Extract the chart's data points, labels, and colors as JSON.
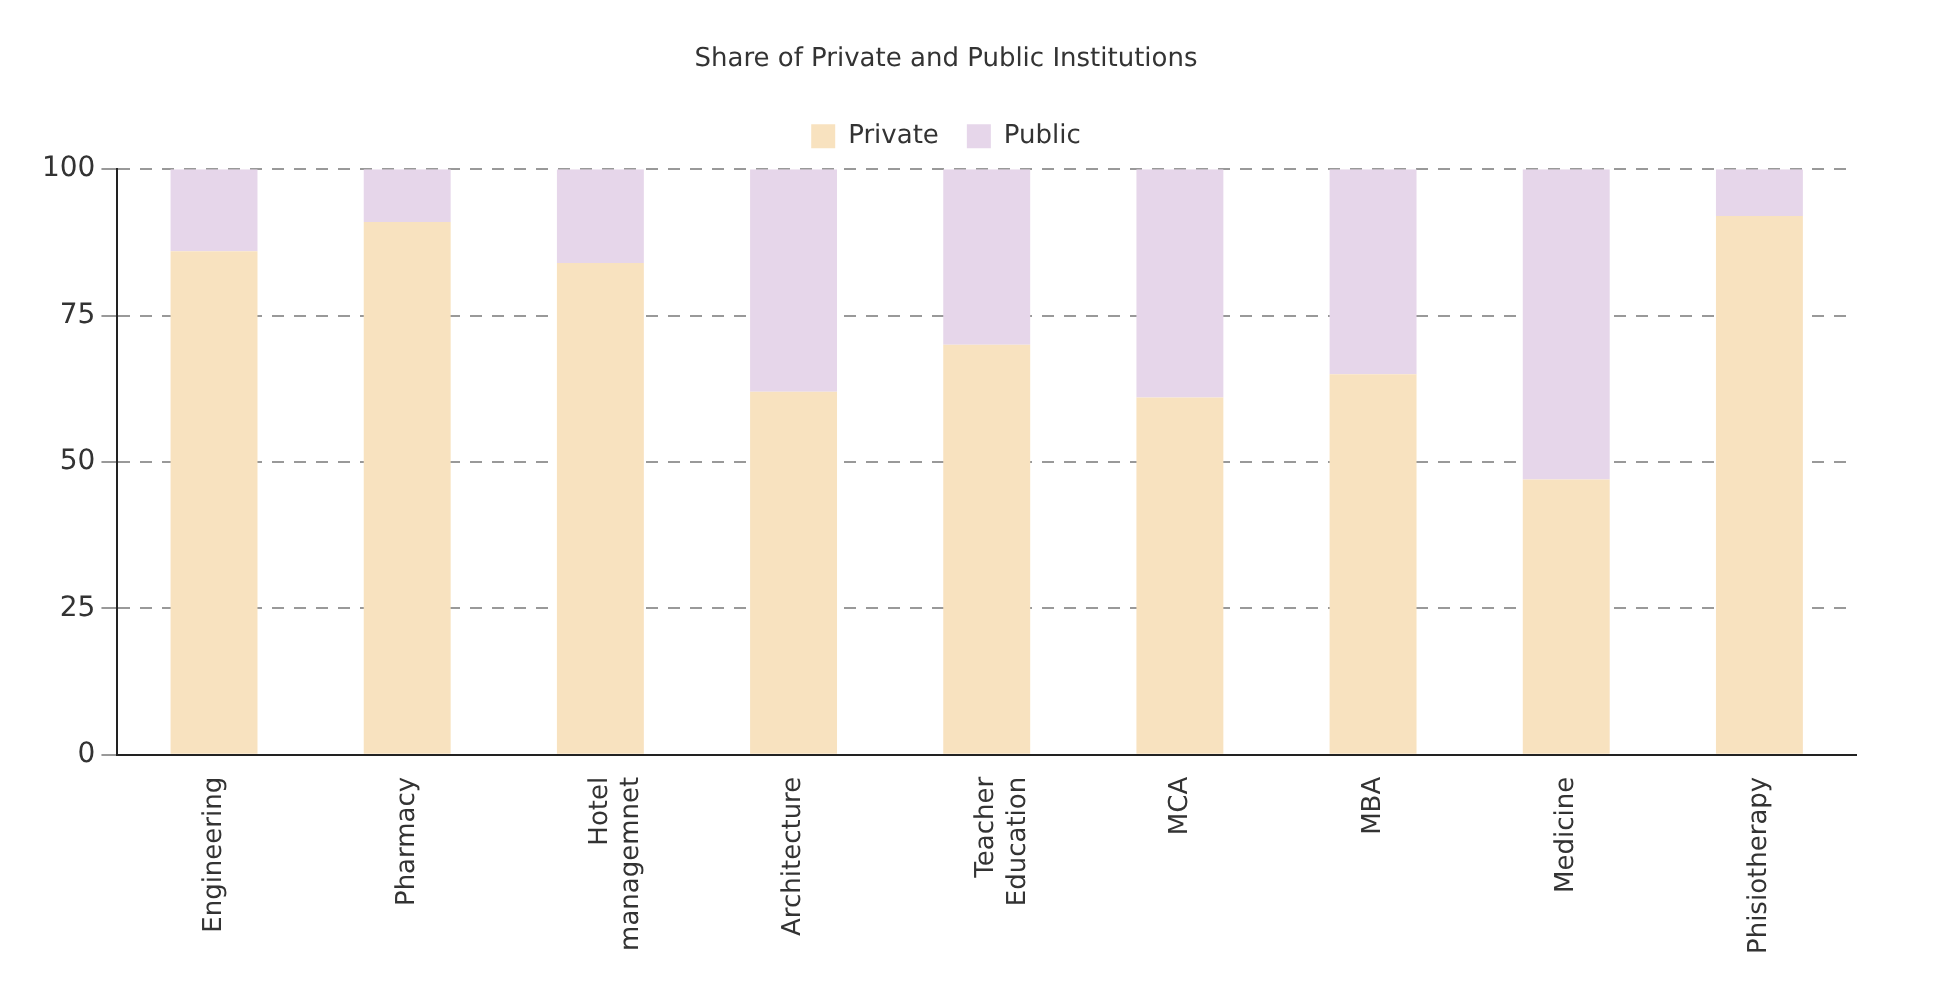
{
  "chart_data": {
    "type": "bar",
    "title": "Share of Private and Public Institutions",
    "stacked": true,
    "categories": [
      "Engineering",
      "Pharmacy",
      "Hotel managemnet",
      "Architecture",
      "Teacher Education",
      "MCA",
      "MBA",
      "Medicine",
      "Phisiotherapy"
    ],
    "series": [
      {
        "name": "Private",
        "color": "#f8e2bf",
        "values": [
          86,
          91,
          84,
          62,
          70,
          61,
          65,
          47,
          92
        ]
      },
      {
        "name": "Public",
        "color": "#e6d6ea",
        "values": [
          14,
          9,
          16,
          38,
          30,
          39,
          35,
          53,
          8
        ]
      }
    ],
    "ylim": [
      0,
      100
    ],
    "yticks": [
      0,
      25,
      50,
      75,
      100
    ],
    "grid": "y",
    "legend": "top"
  }
}
